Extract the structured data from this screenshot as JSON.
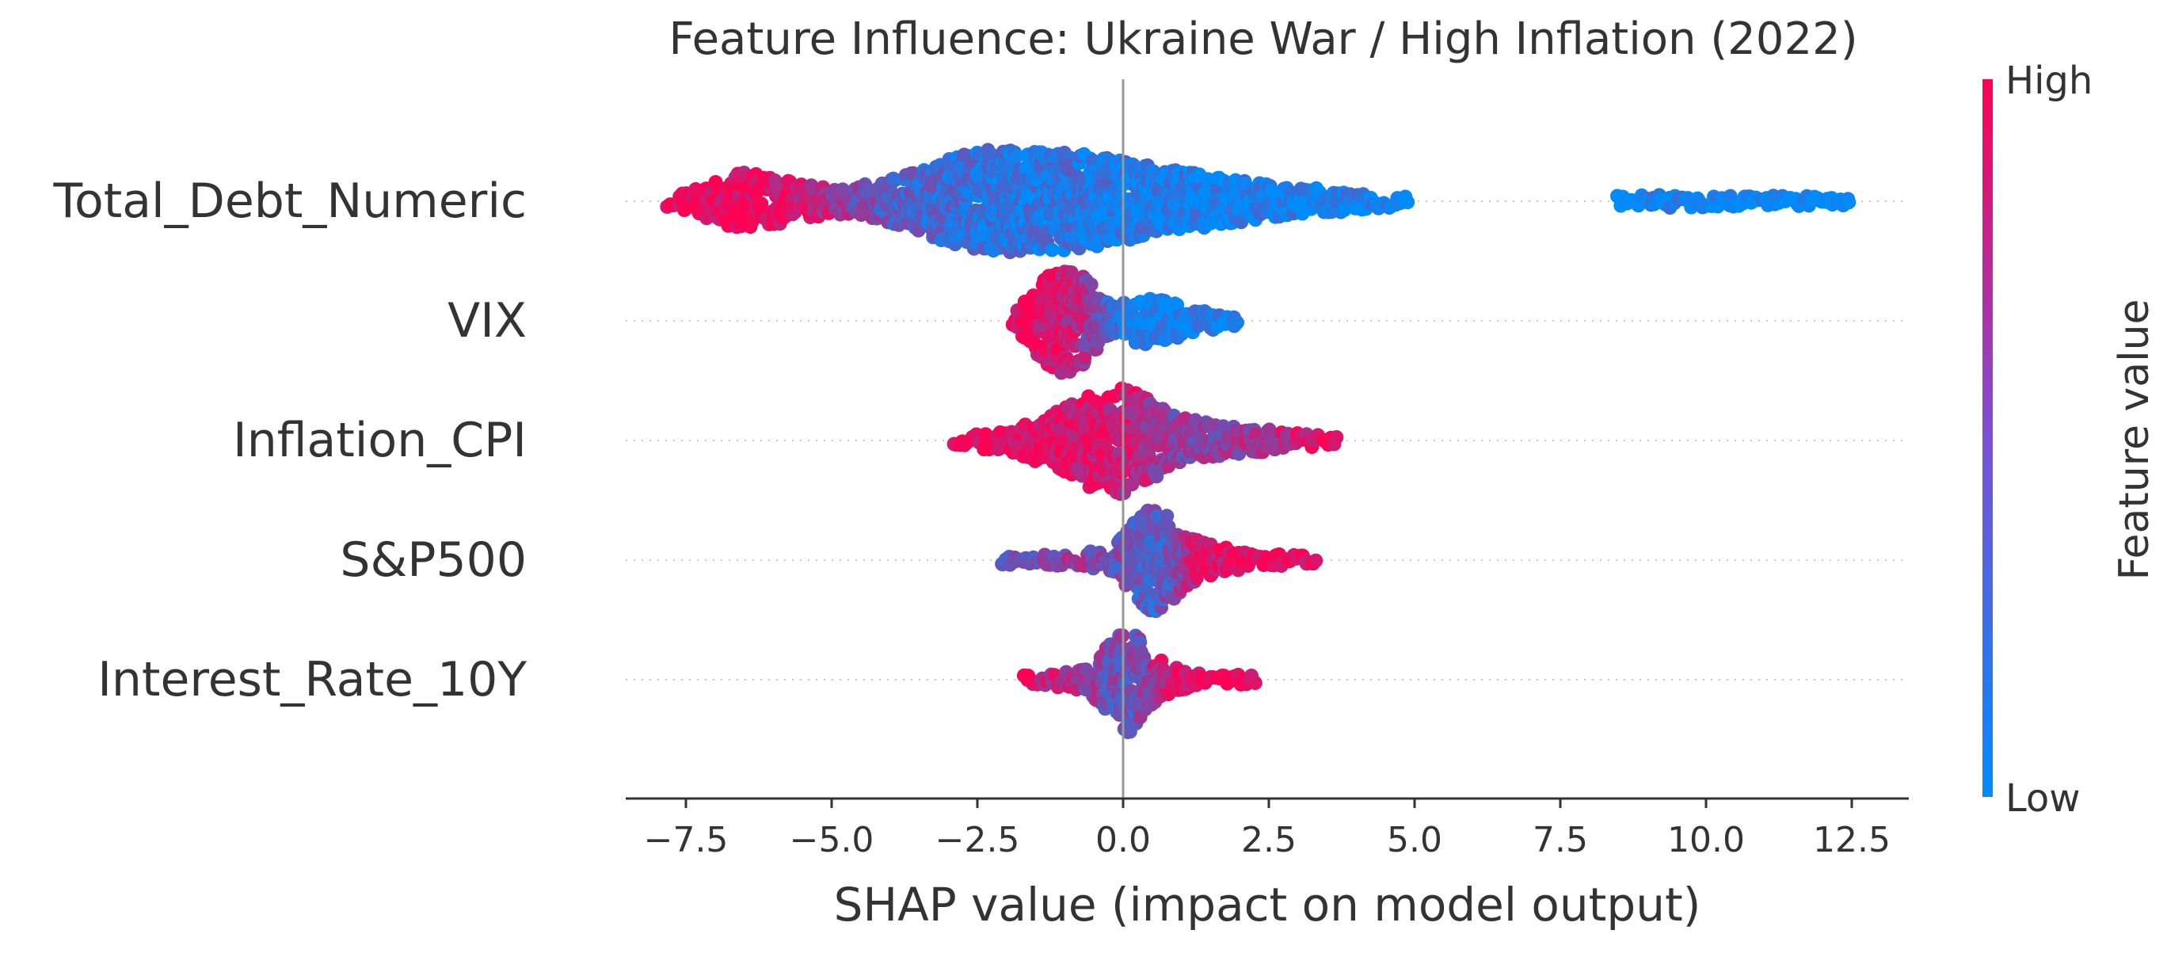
{
  "chart_data": {
    "type": "scatter",
    "subtype": "shap-beeswarm",
    "title": "Feature Influence: Ukraine War / High Inflation (2022)",
    "xlabel": "SHAP value (impact on model output)",
    "ylabel": "",
    "xlim": [
      -8.6,
      13.4
    ],
    "xticks": [
      -7.5,
      -5.0,
      -2.5,
      0.0,
      2.5,
      5.0,
      7.5,
      10.0,
      12.5
    ],
    "xtick_labels": [
      "−7.5",
      "−5.0",
      "−2.5",
      "0.0",
      "2.5",
      "5.0",
      "7.5",
      "10.0",
      "12.5"
    ],
    "grid": "dotted horizontal lines per feature",
    "features": [
      {
        "name": "Total_Debt_Numeric",
        "swarm": [
          [
            -7.8,
            0.12,
            0.95
          ],
          [
            -7.0,
            0.35,
            0.95
          ],
          [
            -6.6,
            0.55,
            0.95
          ],
          [
            -6.0,
            0.45,
            0.9
          ],
          [
            -5.3,
            0.3,
            0.8
          ],
          [
            -4.8,
            0.25,
            0.6
          ],
          [
            -4.2,
            0.35,
            0.4
          ],
          [
            -3.5,
            0.6,
            0.3
          ],
          [
            -2.8,
            0.85,
            0.2
          ],
          [
            -2.2,
            1.0,
            0.15
          ],
          [
            -1.5,
            0.95,
            0.15
          ],
          [
            -0.8,
            0.9,
            0.15
          ],
          [
            0.0,
            0.75,
            0.1
          ],
          [
            0.8,
            0.6,
            0.08
          ],
          [
            1.6,
            0.45,
            0.05
          ],
          [
            2.5,
            0.32,
            0.05
          ],
          [
            3.5,
            0.22,
            0.05
          ],
          [
            4.3,
            0.15,
            0.05
          ],
          [
            4.9,
            0.08,
            0.05
          ]
        ],
        "cluster": [
          [
            8.5,
            0.1,
            0.0
          ],
          [
            9.5,
            0.12,
            0.0
          ],
          [
            10.5,
            0.1,
            0.0
          ],
          [
            11.5,
            0.1,
            0.0
          ],
          [
            12.5,
            0.08,
            0.0
          ]
        ]
      },
      {
        "name": "VIX",
        "swarm": [
          [
            -1.9,
            0.1,
            0.95
          ],
          [
            -1.6,
            0.45,
            0.9
          ],
          [
            -1.3,
            0.85,
            0.85
          ],
          [
            -1.0,
            1.0,
            0.8
          ],
          [
            -0.7,
            0.85,
            0.7
          ],
          [
            -0.4,
            0.5,
            0.45
          ],
          [
            -0.1,
            0.3,
            0.2
          ],
          [
            0.3,
            0.45,
            0.05
          ],
          [
            0.7,
            0.4,
            0.05
          ],
          [
            1.1,
            0.28,
            0.05
          ],
          [
            1.5,
            0.18,
            0.05
          ],
          [
            2.0,
            0.1,
            0.05
          ]
        ]
      },
      {
        "name": "Inflation_CPI",
        "swarm": [
          [
            -2.9,
            0.08,
            0.95
          ],
          [
            -2.2,
            0.2,
            0.92
          ],
          [
            -1.6,
            0.35,
            0.9
          ],
          [
            -1.0,
            0.6,
            0.88
          ],
          [
            -0.5,
            0.9,
            0.85
          ],
          [
            0.0,
            1.0,
            0.8
          ],
          [
            0.4,
            0.8,
            0.7
          ],
          [
            0.9,
            0.45,
            0.55
          ],
          [
            1.5,
            0.32,
            0.5
          ],
          [
            2.0,
            0.25,
            0.6
          ],
          [
            2.6,
            0.2,
            0.7
          ],
          [
            3.2,
            0.12,
            0.85
          ],
          [
            3.7,
            0.08,
            0.95
          ]
        ]
      },
      {
        "name": "S&P500",
        "swarm": [
          [
            -2.1,
            0.08,
            0.45
          ],
          [
            -1.5,
            0.1,
            0.5
          ],
          [
            -0.8,
            0.12,
            0.55
          ],
          [
            -0.2,
            0.25,
            0.5
          ],
          [
            0.2,
            0.7,
            0.35
          ],
          [
            0.5,
            1.0,
            0.3
          ],
          [
            0.9,
            0.7,
            0.45
          ],
          [
            1.3,
            0.35,
            0.8
          ],
          [
            1.8,
            0.22,
            0.9
          ],
          [
            2.4,
            0.15,
            0.95
          ],
          [
            2.9,
            0.1,
            0.95
          ],
          [
            3.3,
            0.06,
            0.95
          ]
        ]
      },
      {
        "name": "Interest_Rate_10Y",
        "swarm": [
          [
            -1.7,
            0.08,
            0.9
          ],
          [
            -1.2,
            0.12,
            0.75
          ],
          [
            -0.6,
            0.25,
            0.6
          ],
          [
            -0.2,
            0.8,
            0.45
          ],
          [
            0.1,
            1.0,
            0.4
          ],
          [
            0.4,
            0.6,
            0.5
          ],
          [
            0.8,
            0.25,
            0.85
          ],
          [
            1.3,
            0.15,
            0.95
          ],
          [
            1.8,
            0.12,
            0.95
          ],
          [
            2.3,
            0.08,
            0.95
          ]
        ]
      }
    ],
    "colorbar": {
      "label": "Feature value",
      "high_label": "High",
      "low_label": "Low",
      "high_color": "#ff0052",
      "low_color": "#008bfb"
    }
  }
}
